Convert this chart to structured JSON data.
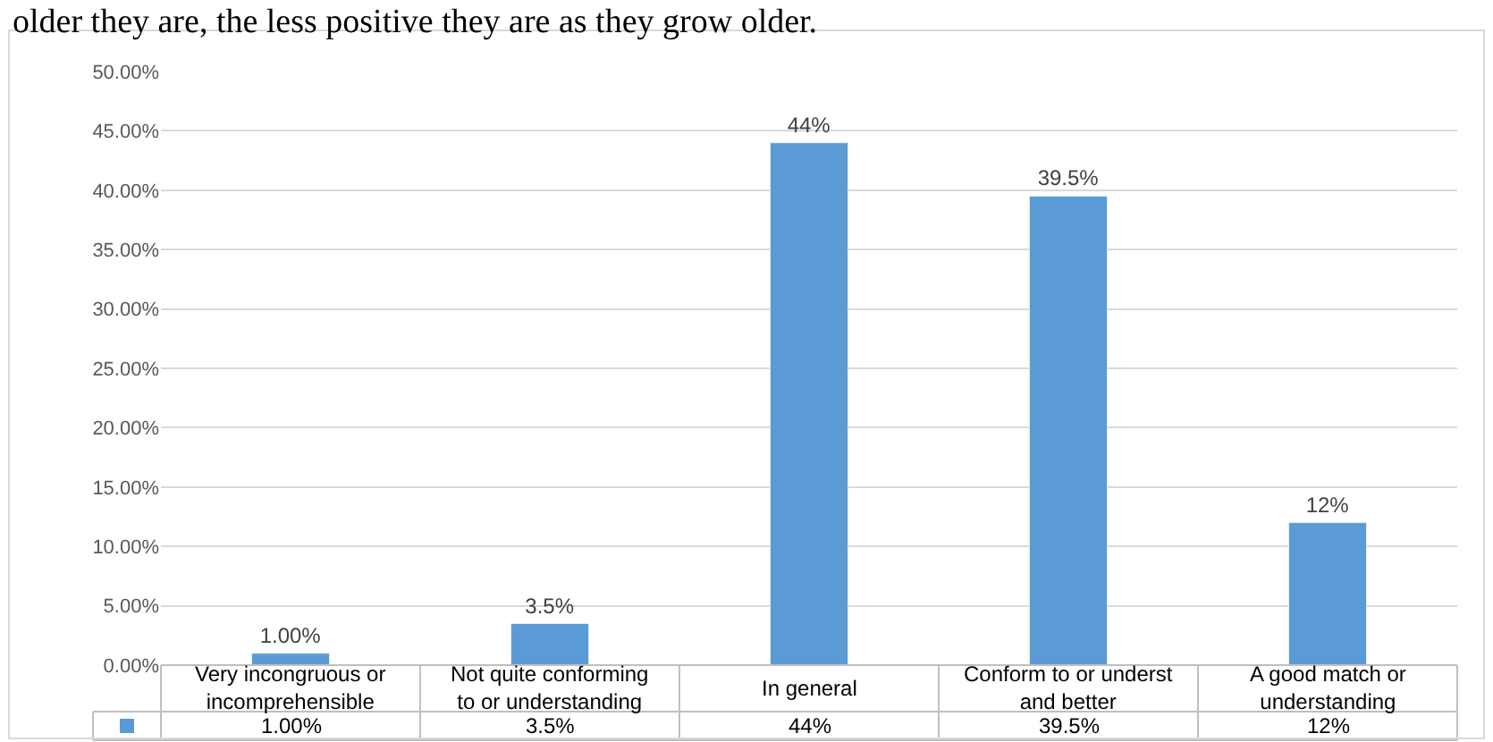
{
  "chart_data": {
    "type": "bar",
    "annotations": [
      "older they are, the less positive they are as they grow older."
    ],
    "categories": [
      "Very incongruous or incomprehensible",
      "Not quite conforming to or understanding",
      "In general",
      "Conform to or underst and better",
      "A good match or understanding"
    ],
    "values": [
      1,
      3.5,
      44,
      39.5,
      12
    ],
    "value_labels": [
      "1.00%",
      "3.5%",
      "44%",
      "39.5%",
      "12%"
    ],
    "color": "#5b9bd5",
    "ylim": [
      0,
      50
    ],
    "yticks": [
      {
        "value": 0,
        "label": "0.00%"
      },
      {
        "value": 5,
        "label": "5.00%"
      },
      {
        "value": 10,
        "label": "10.00%"
      },
      {
        "value": 15,
        "label": "15.00%"
      },
      {
        "value": 20,
        "label": "20.00%"
      },
      {
        "value": 25,
        "label": "25.00%"
      },
      {
        "value": 30,
        "label": "30.00%"
      },
      {
        "value": 35,
        "label": "35.00%"
      },
      {
        "value": 40,
        "label": "40.00%"
      },
      {
        "value": 45,
        "label": "45.00%"
      },
      {
        "value": 50,
        "label": "50.00%"
      }
    ],
    "grid": "y"
  }
}
